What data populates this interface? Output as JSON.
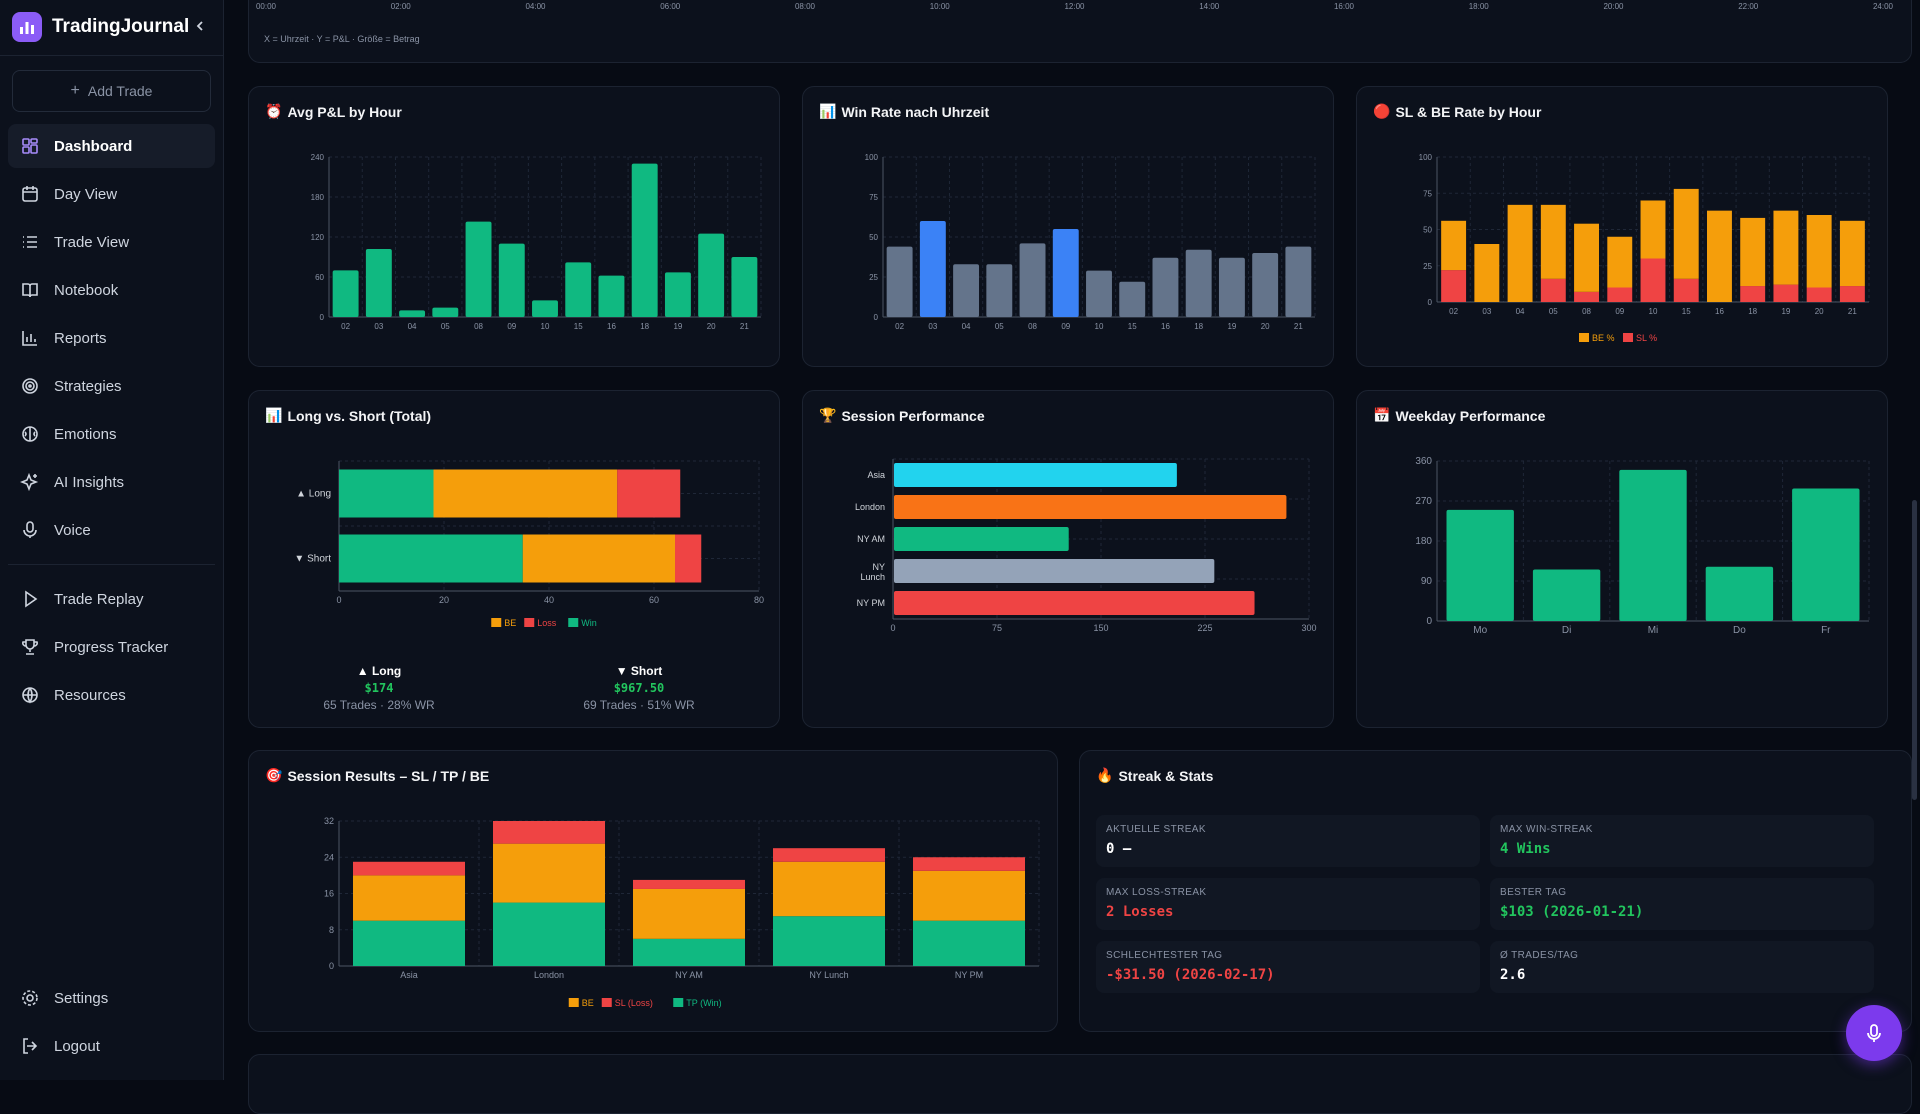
{
  "app": {
    "title": "TradingJournal"
  },
  "sidebar": {
    "add_trade": "Add Trade",
    "items": [
      {
        "label": "Dashboard",
        "icon": "dashboard-icon",
        "active": true
      },
      {
        "label": "Day View",
        "icon": "calendar-icon"
      },
      {
        "label": "Trade View",
        "icon": "list-icon"
      },
      {
        "label": "Notebook",
        "icon": "book-icon"
      },
      {
        "label": "Reports",
        "icon": "bar-chart-icon"
      },
      {
        "label": "Strategies",
        "icon": "target-icon"
      },
      {
        "label": "Emotions",
        "icon": "brain-icon"
      },
      {
        "label": "AI Insights",
        "icon": "sparkle-icon"
      },
      {
        "label": "Voice",
        "icon": "microphone-icon"
      }
    ],
    "items2": [
      {
        "label": "Trade Replay",
        "icon": "play-icon"
      },
      {
        "label": "Progress Tracker",
        "icon": "trophy-icon"
      },
      {
        "label": "Resources",
        "icon": "globe-icon"
      }
    ],
    "settings": "Settings",
    "logout": "Logout"
  },
  "top_chart": {
    "ticks": [
      "00:00",
      "02:00",
      "04:00",
      "06:00",
      "08:00",
      "10:00",
      "12:00",
      "14:00",
      "16:00",
      "18:00",
      "20:00",
      "22:00",
      "24:00"
    ],
    "caption": "X = Uhrzeit · Y = P&L · Größe = Betrag"
  },
  "cards": {
    "avg_pnl": {
      "title": "Avg P&L by Hour",
      "icon": "⏰"
    },
    "winrate": {
      "title": "Win Rate nach Uhrzeit",
      "icon": "📊"
    },
    "slbe": {
      "title": "SL & BE Rate by Hour",
      "icon": "🔴"
    },
    "longshort": {
      "title": "Long vs. Short (Total)",
      "icon": "📊"
    },
    "session": {
      "title": "Session Performance",
      "icon": "🏆"
    },
    "weekday": {
      "title": "Weekday Performance",
      "icon": "📅"
    },
    "session_results": {
      "title": "Session Results – SL / TP / BE",
      "icon": "🎯"
    },
    "streak": {
      "title": "Streak & Stats",
      "icon": "🔥"
    }
  },
  "longshort_summary": {
    "long": {
      "label": "▲ Long",
      "value": "$174",
      "sub": "65 Trades · 28% WR"
    },
    "short": {
      "label": "▼ Short",
      "value": "$967.50",
      "sub": "69 Trades · 51% WR"
    }
  },
  "stats": [
    {
      "label": "AKTUELLE STREAK",
      "value": "0 —",
      "color": "#ffffff"
    },
    {
      "label": "MAX WIN-STREAK",
      "value": "4 Wins",
      "color": "#22c55e"
    },
    {
      "label": "MAX LOSS-STREAK",
      "value": "2 Losses",
      "color": "#ef4444"
    },
    {
      "label": "BESTER TAG",
      "value": "$103 (2026-01-21)",
      "color": "#22c55e"
    },
    {
      "label": "SCHLECHTESTER TAG",
      "value": "-$31.50 (2026-02-17)",
      "color": "#ef4444"
    },
    {
      "label": "Ø TRADES/TAG",
      "value": "2.6",
      "color": "#ffffff"
    }
  ],
  "colors": {
    "green": "#10b981",
    "orange": "#f59e0b",
    "red": "#ef4444",
    "blue": "#3b82f6",
    "slate": "#64748b"
  },
  "chart_data": [
    {
      "id": "avg_pnl",
      "type": "bar",
      "categories": [
        "02",
        "03",
        "04",
        "05",
        "08",
        "09",
        "10",
        "15",
        "16",
        "18",
        "19",
        "20",
        "21"
      ],
      "values": [
        70,
        102,
        10,
        14,
        143,
        110,
        25,
        82,
        62,
        230,
        67,
        125,
        90
      ],
      "ylim": [
        0,
        240
      ],
      "yticks": [
        0,
        60,
        120,
        180,
        240
      ]
    },
    {
      "id": "winrate",
      "type": "bar",
      "categories": [
        "02",
        "03",
        "04",
        "05",
        "08",
        "09",
        "10",
        "15",
        "16",
        "18",
        "19",
        "20",
        "21"
      ],
      "values": [
        44,
        60,
        33,
        33,
        46,
        55,
        29,
        22,
        37,
        42,
        37,
        40,
        44
      ],
      "highlight": [
        "03",
        "09"
      ],
      "ylim": [
        0,
        100
      ],
      "yticks": [
        0,
        25,
        50,
        75,
        100
      ]
    },
    {
      "id": "slbe",
      "type": "bar",
      "stacked": true,
      "categories": [
        "02",
        "03",
        "04",
        "05",
        "08",
        "09",
        "10",
        "15",
        "16",
        "18",
        "19",
        "20",
        "21"
      ],
      "series": [
        {
          "name": "SL %",
          "values": [
            22,
            0,
            0,
            16,
            7,
            10,
            30,
            16,
            0,
            11,
            12,
            10,
            11
          ]
        },
        {
          "name": "BE %",
          "values": [
            34,
            40,
            67,
            51,
            47,
            35,
            40,
            62,
            63,
            47,
            51,
            50,
            45
          ]
        }
      ],
      "ylim": [
        0,
        100
      ],
      "yticks": [
        0,
        25,
        50,
        75,
        100
      ],
      "legend": [
        "BE %",
        "SL %"
      ]
    },
    {
      "id": "longshort",
      "type": "bar",
      "orientation": "horizontal",
      "stacked": true,
      "categories": [
        "▲ Long",
        "▼ Short"
      ],
      "series": [
        {
          "name": "Win",
          "values": [
            18,
            35
          ]
        },
        {
          "name": "BE",
          "values": [
            35,
            29
          ]
        },
        {
          "name": "Loss",
          "values": [
            12,
            5
          ]
        }
      ],
      "xlim": [
        0,
        80
      ],
      "xticks": [
        0,
        20,
        40,
        60,
        80
      ],
      "legend": [
        "BE",
        "Loss",
        "Win"
      ]
    },
    {
      "id": "session",
      "type": "bar",
      "orientation": "horizontal",
      "categories": [
        "Asia",
        "London",
        "NY AM",
        "NY Lunch",
        "NY PM"
      ],
      "values": [
        204,
        283,
        126,
        231,
        260
      ],
      "colors": [
        "#22d3ee",
        "#f97316",
        "#10b981",
        "#94a3b8",
        "#ef4444"
      ],
      "xlim": [
        0,
        300
      ],
      "xticks": [
        0,
        75,
        150,
        225,
        300
      ]
    },
    {
      "id": "weekday",
      "type": "bar",
      "categories": [
        "Mo",
        "Di",
        "Mi",
        "Do",
        "Fr"
      ],
      "values": [
        250,
        116,
        340,
        122,
        298
      ],
      "ylim": [
        0,
        360
      ],
      "yticks": [
        0,
        90,
        180,
        270,
        360
      ]
    },
    {
      "id": "session_results",
      "type": "bar",
      "stacked": true,
      "categories": [
        "Asia",
        "London",
        "NY AM",
        "NY Lunch",
        "NY PM"
      ],
      "series": [
        {
          "name": "TP (Win)",
          "values": [
            10,
            14,
            6,
            11,
            10
          ]
        },
        {
          "name": "BE",
          "values": [
            10,
            13,
            11,
            12,
            11
          ]
        },
        {
          "name": "SL (Loss)",
          "values": [
            3,
            5,
            2,
            3,
            3
          ]
        }
      ],
      "ylim": [
        0,
        32
      ],
      "yticks": [
        0,
        8,
        16,
        24,
        32
      ],
      "legend": [
        "BE",
        "SL (Loss)",
        "TP (Win)"
      ]
    }
  ]
}
